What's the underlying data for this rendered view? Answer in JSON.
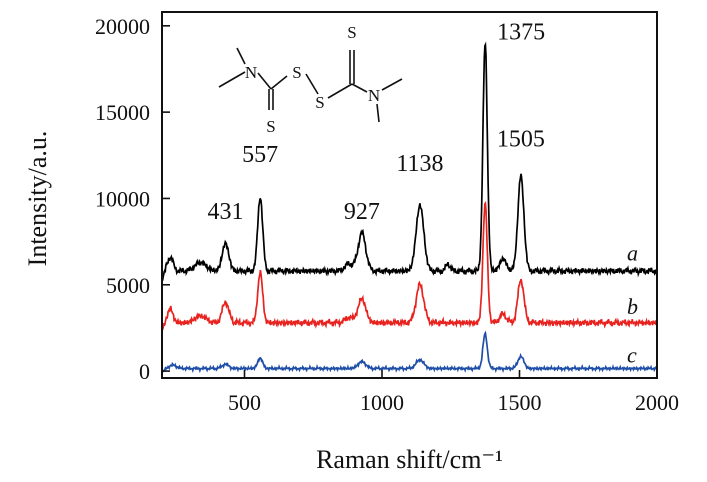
{
  "chart_data": {
    "type": "line",
    "xlabel": "Raman shift/cm⁻¹",
    "ylabel": "Intensity/a.u.",
    "xlim": [
      200,
      2000
    ],
    "ylim": [
      -400,
      20800
    ],
    "x_ticks": [
      500,
      1000,
      1500,
      2000
    ],
    "y_ticks": [
      0,
      5000,
      10000,
      15000,
      20000
    ],
    "grid": false,
    "peaks": [
      {
        "x": 431,
        "label": "431"
      },
      {
        "x": 557,
        "label": "557"
      },
      {
        "x": 927,
        "label": "927"
      },
      {
        "x": 1138,
        "label": "1138"
      },
      {
        "x": 1375,
        "label": "1375"
      },
      {
        "x": 1505,
        "label": "1505"
      }
    ],
    "series": [
      {
        "name": "a",
        "color": "#000000",
        "baseline": 5800,
        "peaks": [
          {
            "x": 230,
            "height": 800,
            "width": 10
          },
          {
            "x": 340,
            "height": 500,
            "width": 20
          },
          {
            "x": 431,
            "height": 1600,
            "width": 12
          },
          {
            "x": 557,
            "height": 4300,
            "width": 9
          },
          {
            "x": 880,
            "height": 400,
            "width": 15
          },
          {
            "x": 927,
            "height": 2200,
            "width": 14
          },
          {
            "x": 1138,
            "height": 3800,
            "width": 14
          },
          {
            "x": 1240,
            "height": 400,
            "width": 8
          },
          {
            "x": 1375,
            "height": 13200,
            "width": 8
          },
          {
            "x": 1440,
            "height": 700,
            "width": 12
          },
          {
            "x": 1505,
            "height": 5500,
            "width": 11
          }
        ]
      },
      {
        "name": "b",
        "color": "#e8231f",
        "baseline": 2800,
        "peaks": [
          {
            "x": 230,
            "height": 800,
            "width": 10
          },
          {
            "x": 340,
            "height": 400,
            "width": 20
          },
          {
            "x": 431,
            "height": 1200,
            "width": 12
          },
          {
            "x": 557,
            "height": 2900,
            "width": 9
          },
          {
            "x": 880,
            "height": 300,
            "width": 15
          },
          {
            "x": 927,
            "height": 1400,
            "width": 14
          },
          {
            "x": 1138,
            "height": 2200,
            "width": 14
          },
          {
            "x": 1375,
            "height": 6900,
            "width": 8
          },
          {
            "x": 1440,
            "height": 500,
            "width": 12
          },
          {
            "x": 1505,
            "height": 2500,
            "width": 11
          }
        ]
      },
      {
        "name": "c",
        "color": "#1f4ea8",
        "baseline": 150,
        "peaks": [
          {
            "x": 240,
            "height": 200,
            "width": 12
          },
          {
            "x": 431,
            "height": 250,
            "width": 12
          },
          {
            "x": 557,
            "height": 600,
            "width": 9
          },
          {
            "x": 927,
            "height": 400,
            "width": 14
          },
          {
            "x": 1138,
            "height": 500,
            "width": 14
          },
          {
            "x": 1375,
            "height": 2000,
            "width": 8
          },
          {
            "x": 1505,
            "height": 700,
            "width": 11
          }
        ]
      }
    ]
  },
  "structure": {
    "atoms": [
      "N",
      "S",
      "S",
      "S",
      "S",
      "N"
    ]
  }
}
